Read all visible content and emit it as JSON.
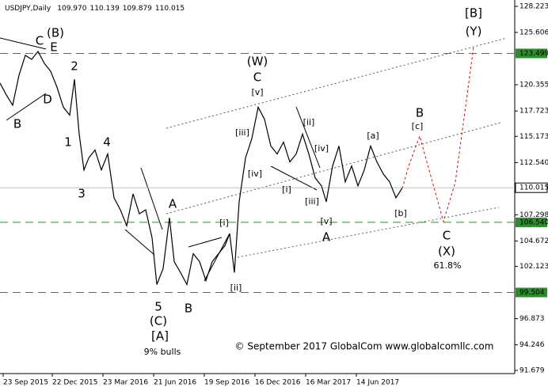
{
  "chart_data": {
    "type": "line",
    "title": "USDJPY,Daily",
    "ohlc": [
      {
        "value": 109.97,
        "label": "109.970"
      },
      110.139,
      109.879,
      110.015
    ],
    "color": "#000000",
    "x": [
      0,
      8,
      16,
      24,
      32,
      40,
      48,
      56,
      64,
      72,
      80,
      88,
      94,
      100,
      106,
      112,
      120,
      128,
      136,
      144,
      152,
      160,
      168,
      176,
      184,
      192,
      198,
      206,
      214,
      220,
      228,
      236,
      244,
      252,
      260,
      268,
      276,
      284,
      290,
      296,
      302,
      310,
      318,
      326,
      334,
      342,
      350,
      358,
      366,
      374,
      382,
      390,
      398,
      406,
      412,
      420,
      428,
      436,
      444,
      452,
      460,
      468,
      476,
      484,
      492,
      500,
      508
    ],
    "values": [
      120.52,
      119.33,
      118.3,
      121.31,
      123.3,
      122.9,
      123.7,
      122.5,
      121.7,
      120.1,
      118.1,
      117.3,
      120.9,
      115.4,
      111.8,
      113.0,
      113.8,
      111.8,
      113.4,
      109.0,
      107.8,
      106.2,
      109.4,
      107.4,
      107.8,
      105.0,
      100.3,
      101.9,
      107.0,
      102.6,
      101.5,
      100.3,
      103.4,
      102.6,
      100.7,
      102.6,
      103.4,
      104.2,
      105.4,
      101.5,
      108.6,
      113.0,
      114.95,
      118.1,
      116.9,
      114.2,
      113.4,
      114.6,
      112.6,
      113.4,
      115.4,
      113.4,
      111.0,
      110.2,
      108.6,
      112.2,
      114.2,
      110.6,
      112.2,
      110.2,
      111.8,
      114.2,
      112.6,
      111.4,
      110.6,
      109.0,
      110.0
    ],
    "xlim": [
      0,
      650
    ],
    "xticks": [
      {
        "value": 4,
        "label": "23 Sep 2015"
      },
      {
        "value": 66,
        "label": "22 Dec 2015"
      },
      {
        "value": 130,
        "label": "23 Mar 2016"
      },
      {
        "value": 194,
        "label": "21 Jun 2016"
      },
      {
        "value": 258,
        "label": "19 Sep 2016"
      },
      {
        "value": 322,
        "label": "16 Dec 2016"
      },
      {
        "value": 386,
        "label": "16 Mar 2017"
      },
      {
        "value": 450,
        "label": "14 Jun 2017"
      }
    ],
    "ylim": [
      91.36,
      128.86
    ],
    "yticks": [
      128.223,
      125.606,
      120.355,
      117.723,
      115.173,
      {
        "value": 112.54,
        "label": "112.540"
      },
      107.298,
      104.672,
      102.123,
      96.873,
      94.246,
      91.679
    ],
    "levels": [
      123.499,
      {
        "value": 106.54,
        "label": "106.540"
      },
      99.504
    ],
    "level_color": "#2e8b2e",
    "price": 110.015,
    "annotations": [
      {
        "text": "(B)",
        "color": "#1a237e"
      },
      {
        "text": "C",
        "color": "#8b1a1a"
      },
      {
        "text": "E",
        "color": "#8b1a1a"
      },
      {
        "text": "B",
        "color": "#8b1a1a"
      },
      {
        "text": "D",
        "color": "#8b1a1a"
      },
      {
        "text": "2",
        "color": "#8b1a1a"
      },
      {
        "text": "1",
        "color": "#8b1a1a"
      },
      {
        "text": "4",
        "color": "#8b1a1a"
      },
      {
        "text": "3",
        "color": "#8b1a1a"
      },
      {
        "text": "5",
        "color": "#8b1a1a"
      },
      {
        "text": "(C)",
        "color": "#1a237e"
      },
      {
        "text": "[A]",
        "color": "#2e7d32"
      },
      {
        "text": "9% bulls",
        "color": "#e00000"
      },
      {
        "text": "A",
        "color": "#8b1a1a"
      },
      {
        "text": "B",
        "color": "#8b1a1a"
      },
      {
        "text": "[i]",
        "color": "#2e7d32"
      },
      {
        "text": "[ii]",
        "color": "#2e7d32"
      },
      {
        "text": "[iii]",
        "color": "#2e7d32"
      },
      {
        "text": "[iv]",
        "color": "#2e7d32"
      },
      {
        "text": "[v]",
        "color": "#2e7d32"
      },
      {
        "text": "C",
        "color": "#8b1a1a"
      },
      {
        "text": "(W)",
        "color": "#1a237e"
      },
      {
        "text": "[i]",
        "color": "#2e7d32"
      },
      {
        "text": "[ii]",
        "color": "#2e7d32"
      },
      {
        "text": "[iii]",
        "color": "#2e7d32"
      },
      {
        "text": "[iv]",
        "color": "#2e7d32"
      },
      {
        "text": "[v]",
        "color": "#2e7d32"
      },
      {
        "text": "A",
        "color": "#8b1a1a"
      },
      {
        "text": "[a]",
        "color": "#2e7d32"
      },
      {
        "text": "[b]",
        "color": "#2e7d32"
      },
      {
        "text": "B",
        "color": "#8b1a1a"
      },
      {
        "text": "[c]",
        "color": "#2e7d32"
      },
      {
        "text": "C",
        "color": "#8b1a1a"
      },
      {
        "text": "(X)",
        "color": "#1a237e"
      },
      {
        "text": "61.8%",
        "color": "#1a237e"
      },
      {
        "text": "[B]",
        "color": "#2e7d32"
      },
      {
        "text": "(Y)",
        "color": "#1a237e"
      }
    ],
    "copyright": "© September 2017 GlobalCom www.globalcomllc.com"
  }
}
